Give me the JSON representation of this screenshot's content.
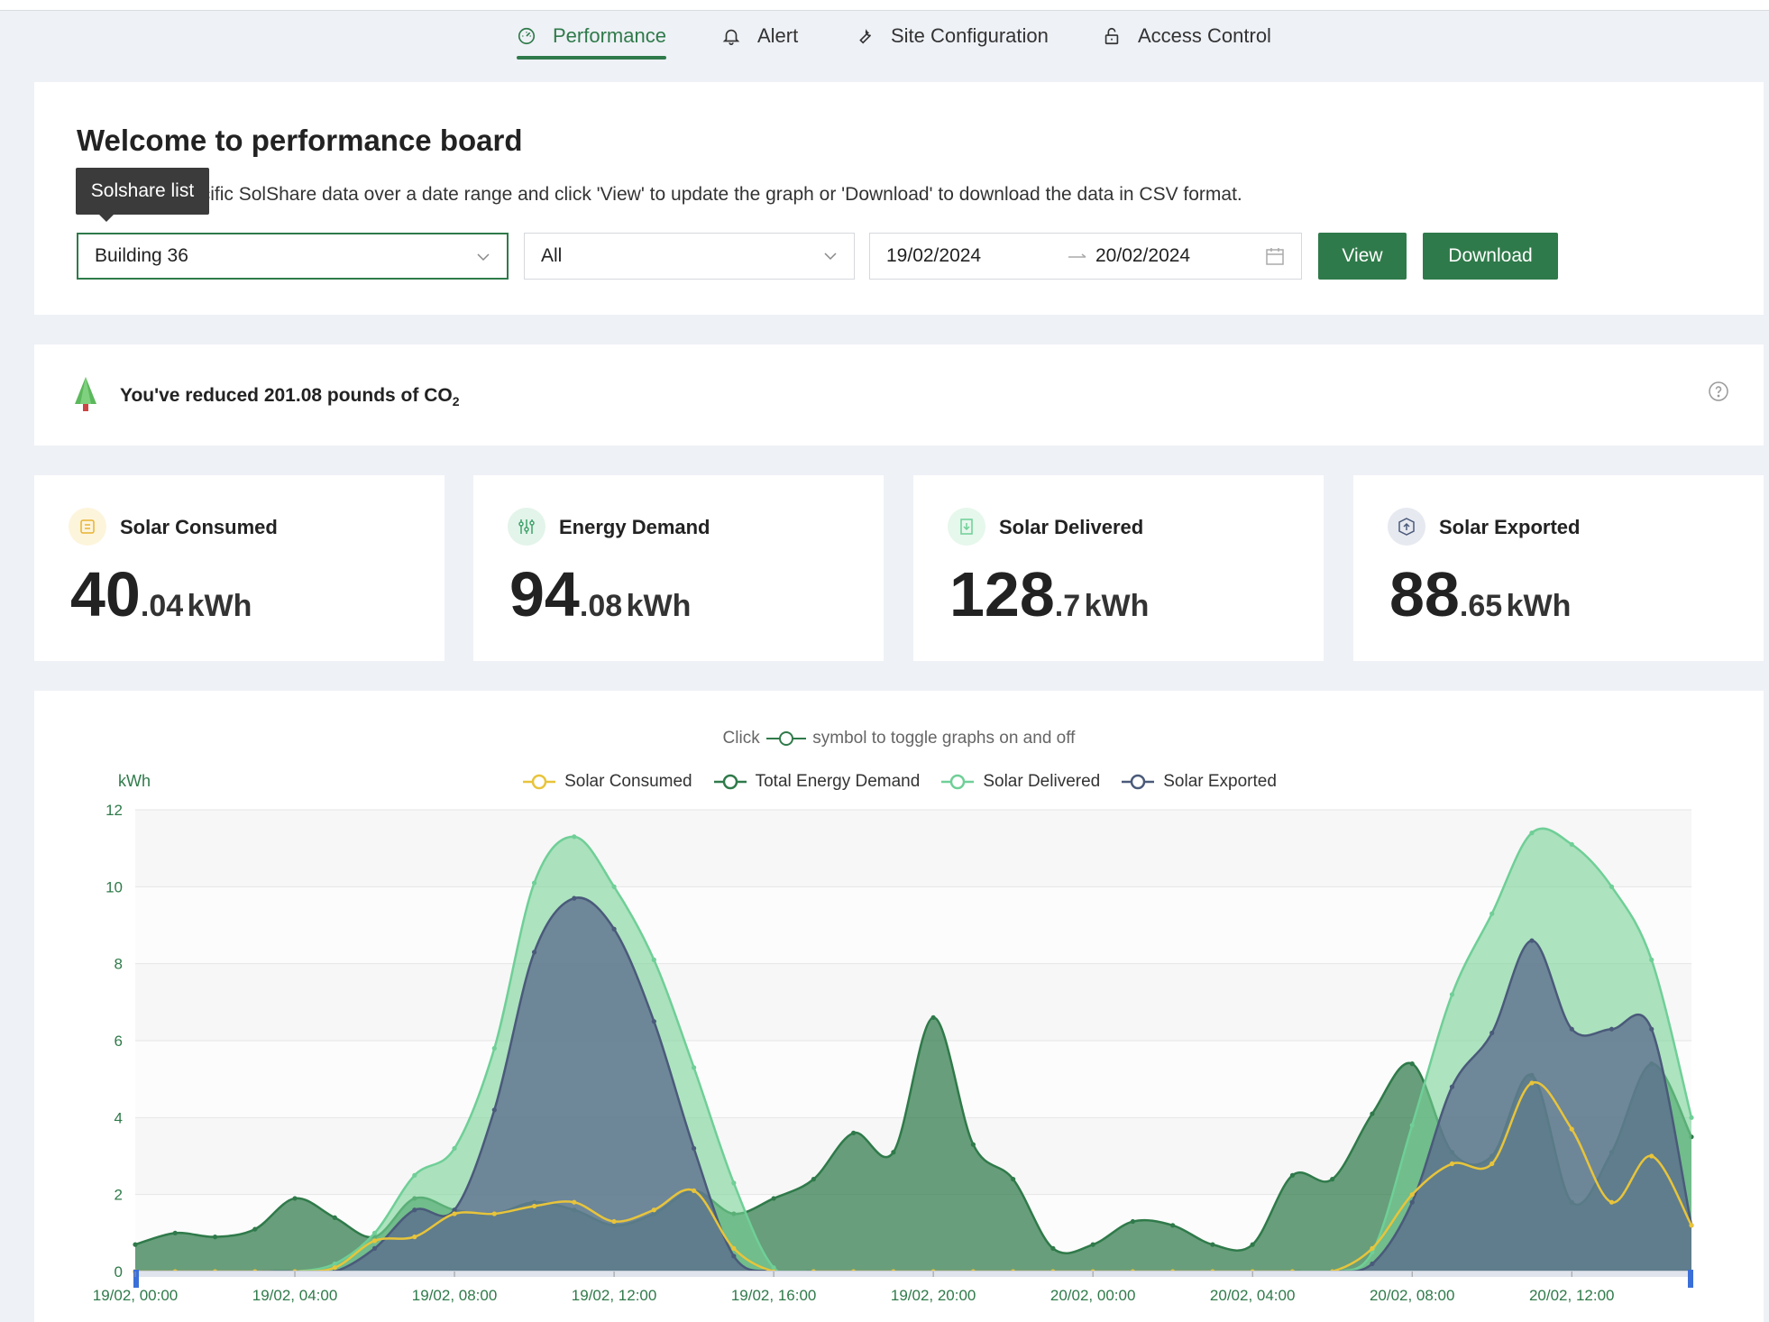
{
  "tabs": [
    {
      "label": "Performance",
      "icon": "gauge-icon"
    },
    {
      "label": "Alert",
      "icon": "bell-icon"
    },
    {
      "label": "Site Configuration",
      "icon": "wrench-icon"
    },
    {
      "label": "Access Control",
      "icon": "lock-icon"
    }
  ],
  "welcome": {
    "title": "Welcome to performance board",
    "description": "Select any specific SolShare data over a date range and click 'View' to update the graph or 'Download' to download the data in CSV format.",
    "tooltip": "Solshare list",
    "solshare_select": "Building 36",
    "filter_select": "All",
    "date_start": "19/02/2024",
    "date_end": "20/02/2024",
    "view_label": "View",
    "download_label": "Download"
  },
  "co2": {
    "text_prefix": "You've reduced 201.08 pounds of CO",
    "subscript": "2"
  },
  "stats": [
    {
      "title": "Solar Consumed",
      "int": "40",
      "dec": ".04",
      "unit": "kWh",
      "icon": "solar-consumed-icon",
      "color": "#e8b430"
    },
    {
      "title": "Energy Demand",
      "int": "94",
      "dec": ".08",
      "unit": "kWh",
      "icon": "sliders-icon",
      "color": "#3fa36a"
    },
    {
      "title": "Solar Delivered",
      "int": "128",
      "dec": ".7",
      "unit": "kWh",
      "icon": "download-icon",
      "color": "#6fcf97"
    },
    {
      "title": "Solar Exported",
      "int": "88",
      "dec": ".65",
      "unit": "kWh",
      "icon": "upload-icon",
      "color": "#4a5a7a"
    }
  ],
  "chart_hint": {
    "prefix": "Click",
    "suffix": "symbol to toggle graphs on and off"
  },
  "chart_data": {
    "type": "area",
    "ylabel": "kWh",
    "ylim": [
      0,
      12
    ],
    "yticks": [
      0,
      2,
      4,
      6,
      8,
      10,
      12
    ],
    "xticks": [
      "19/02, 00:00",
      "19/02, 04:00",
      "19/02, 08:00",
      "19/02, 12:00",
      "19/02, 16:00",
      "19/02, 20:00",
      "20/02, 00:00",
      "20/02, 04:00",
      "20/02, 08:00",
      "20/02, 12:00"
    ],
    "x_hours": [
      0,
      1,
      2,
      3,
      4,
      5,
      6,
      7,
      8,
      9,
      10,
      11,
      12,
      13,
      14,
      15,
      16,
      17,
      18,
      19,
      20,
      21,
      22,
      23,
      24,
      25,
      26,
      27,
      28,
      29,
      30,
      31,
      32,
      33,
      34,
      35,
      36,
      37,
      38,
      39
    ],
    "series": [
      {
        "name": "Total Energy Demand",
        "color": "#2f7a4a",
        "fill": "rgba(47,122,74,0.72)",
        "values": [
          0.7,
          1.0,
          0.9,
          1.1,
          1.9,
          1.4,
          0.9,
          1.9,
          1.6,
          1.5,
          1.8,
          1.6,
          1.2,
          1.5,
          2.1,
          1.5,
          1.9,
          2.4,
          3.6,
          3.1,
          6.6,
          3.3,
          2.4,
          0.6,
          0.7,
          1.3,
          1.2,
          0.7,
          0.7,
          2.5,
          2.4,
          4.1,
          5.4,
          3.1,
          3.0,
          5.1,
          1.8,
          3.1,
          5.4,
          3.5
        ]
      },
      {
        "name": "Solar Delivered",
        "color": "#6fcf97",
        "fill": "rgba(120,210,150,0.6)",
        "values": [
          0,
          0,
          0,
          0,
          0,
          0.2,
          1.0,
          2.5,
          3.2,
          5.8,
          10.1,
          11.3,
          10.0,
          8.1,
          5.3,
          2.3,
          0.1,
          0,
          0,
          0,
          0,
          0,
          0,
          0,
          0,
          0,
          0,
          0,
          0,
          0,
          0,
          0.5,
          3.8,
          7.2,
          9.3,
          11.4,
          11.1,
          10.0,
          8.1,
          4.0
        ]
      },
      {
        "name": "Solar Exported",
        "color": "#4a5a7a",
        "fill": "rgba(90,104,140,0.75)",
        "values": [
          0,
          0,
          0,
          0,
          0,
          0,
          0.6,
          1.6,
          1.6,
          4.2,
          8.3,
          9.7,
          8.9,
          6.5,
          3.2,
          0.4,
          0,
          0,
          0,
          0,
          0,
          0,
          0,
          0,
          0,
          0,
          0,
          0,
          0,
          0,
          0,
          0.2,
          1.8,
          4.8,
          6.2,
          8.6,
          6.3,
          6.3,
          6.3,
          1.2
        ]
      },
      {
        "name": "Solar Consumed",
        "color": "#e8c43a",
        "fill": "none",
        "values": [
          0,
          0,
          0,
          0,
          0,
          0.1,
          0.8,
          0.9,
          1.5,
          1.5,
          1.7,
          1.8,
          1.3,
          1.6,
          2.1,
          0.6,
          0,
          0,
          0,
          0,
          0,
          0,
          0,
          0,
          0,
          0,
          0,
          0,
          0,
          0,
          0,
          0.6,
          2.0,
          2.8,
          2.8,
          4.9,
          3.7,
          1.8,
          3.0,
          1.2
        ]
      }
    ],
    "legend": [
      "Solar Consumed",
      "Total Energy Demand",
      "Solar Delivered",
      "Solar Exported"
    ],
    "legend_position": "top",
    "grid": true
  }
}
